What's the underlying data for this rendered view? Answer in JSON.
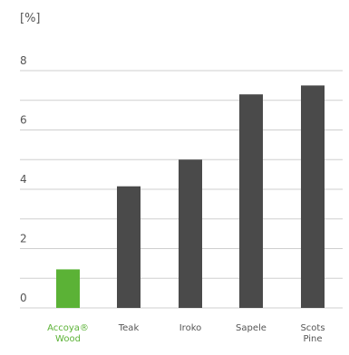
{
  "chart_data": {
    "type": "bar",
    "title": "",
    "xlabel": "",
    "ylabel": "[%]",
    "categories": [
      "Accoya® Wood",
      "Teak",
      "Iroko",
      "Sapele",
      "Scots Pine"
    ],
    "category_lines": [
      [
        "Accoya®",
        "Wood"
      ],
      [
        "Teak"
      ],
      [
        "Iroko"
      ],
      [
        "Sapele"
      ],
      [
        "Scots",
        "Pine"
      ]
    ],
    "values": [
      1.3,
      4.1,
      5.0,
      7.2,
      7.5
    ],
    "ylim": [
      0,
      8
    ],
    "yticks": [
      0,
      2,
      4,
      6,
      8
    ],
    "grid": true,
    "legend": "none",
    "colors": {
      "highlight": "#5bb236",
      "bar": "#4a4a4a",
      "grid": "#cfcfcf",
      "axis_text": "#555555",
      "highlight_text": "#5bb236"
    },
    "highlight_index": 0
  }
}
